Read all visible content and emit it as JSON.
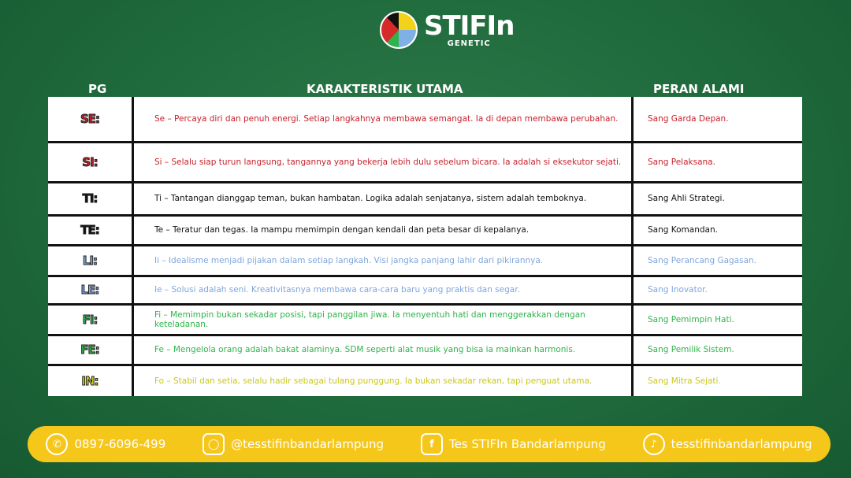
{
  "logo": {
    "title": "STIFIn",
    "subtitle": "GENETIC"
  },
  "headers": {
    "pg": "PG",
    "karakteristik": "KARAKTERISTIK UTAMA",
    "peran": "PERAN ALAMI"
  },
  "rows": [
    {
      "pg": "SE:",
      "desc": "Se – Percaya diri dan penuh energi. Setiap langkahnya membawa semangat. Ia di depan membawa perubahan.",
      "role": "Sang Garda Depan.",
      "color": "#c8202a"
    },
    {
      "pg": "SI:",
      "desc": "Si – Selalu siap turun langsung, tangannya yang bekerja lebih dulu sebelum bicara. Ia adalah si eksekutor sejati.",
      "role": "Sang Pelaksana.",
      "color": "#c8202a"
    },
    {
      "pg": "TI:",
      "desc": "Ti – Tantangan dianggap teman, bukan hambatan. Logika adalah senjatanya, sistem adalah temboknya.",
      "role": "Sang Ahli Strategi.",
      "color": "#111111"
    },
    {
      "pg": "TE:",
      "desc": "Te – Teratur dan tegas. Ia mampu memimpin dengan kendali dan peta besar di kepalanya.",
      "role": "Sang Komandan.",
      "color": "#111111"
    },
    {
      "pg": "LI:",
      "desc": "Ii – Idealisme menjadi pijakan dalam setiap langkah. Visi jangka panjang lahir dari pikirannya.",
      "role": "Sang Perancang Gagasan.",
      "color": "#7fa6dc"
    },
    {
      "pg": "LE:",
      "desc": "Ie – Solusi adalah seni. Kreativitasnya membawa cara-cara baru yang praktis dan segar.",
      "role": "Sang Inovator.",
      "color": "#7fa6dc"
    },
    {
      "pg": "FI:",
      "desc": "Fi – Memimpin bukan sekadar posisi, tapi panggilan jiwa. Ia menyentuh hati dan menggerakkan dengan keteladanan.",
      "role": "Sang Pemimpin Hati.",
      "color": "#2fb34a"
    },
    {
      "pg": "FE:",
      "desc": "Fe – Mengelola orang adalah bakat alaminya. SDM seperti alat musik yang bisa ia mainkan harmonis.",
      "role": "Sang Pemilik Sistem.",
      "color": "#2fb34a"
    },
    {
      "pg": "IN:",
      "desc": "Fo – Stabil dan setia, selalu hadir sebagai tulang punggung. Ia bukan sekadar rekan, tapi penguat utama.",
      "role": "Sang Mitra Sejati.",
      "color": "#c9c81a"
    }
  ],
  "footer": {
    "whatsapp": "0897-6096-499",
    "instagram": "@tesstifinbandarlampung",
    "facebook": "Tes STIFIn Bandarlampung",
    "tiktok": "tesstifinbandarlampung"
  }
}
